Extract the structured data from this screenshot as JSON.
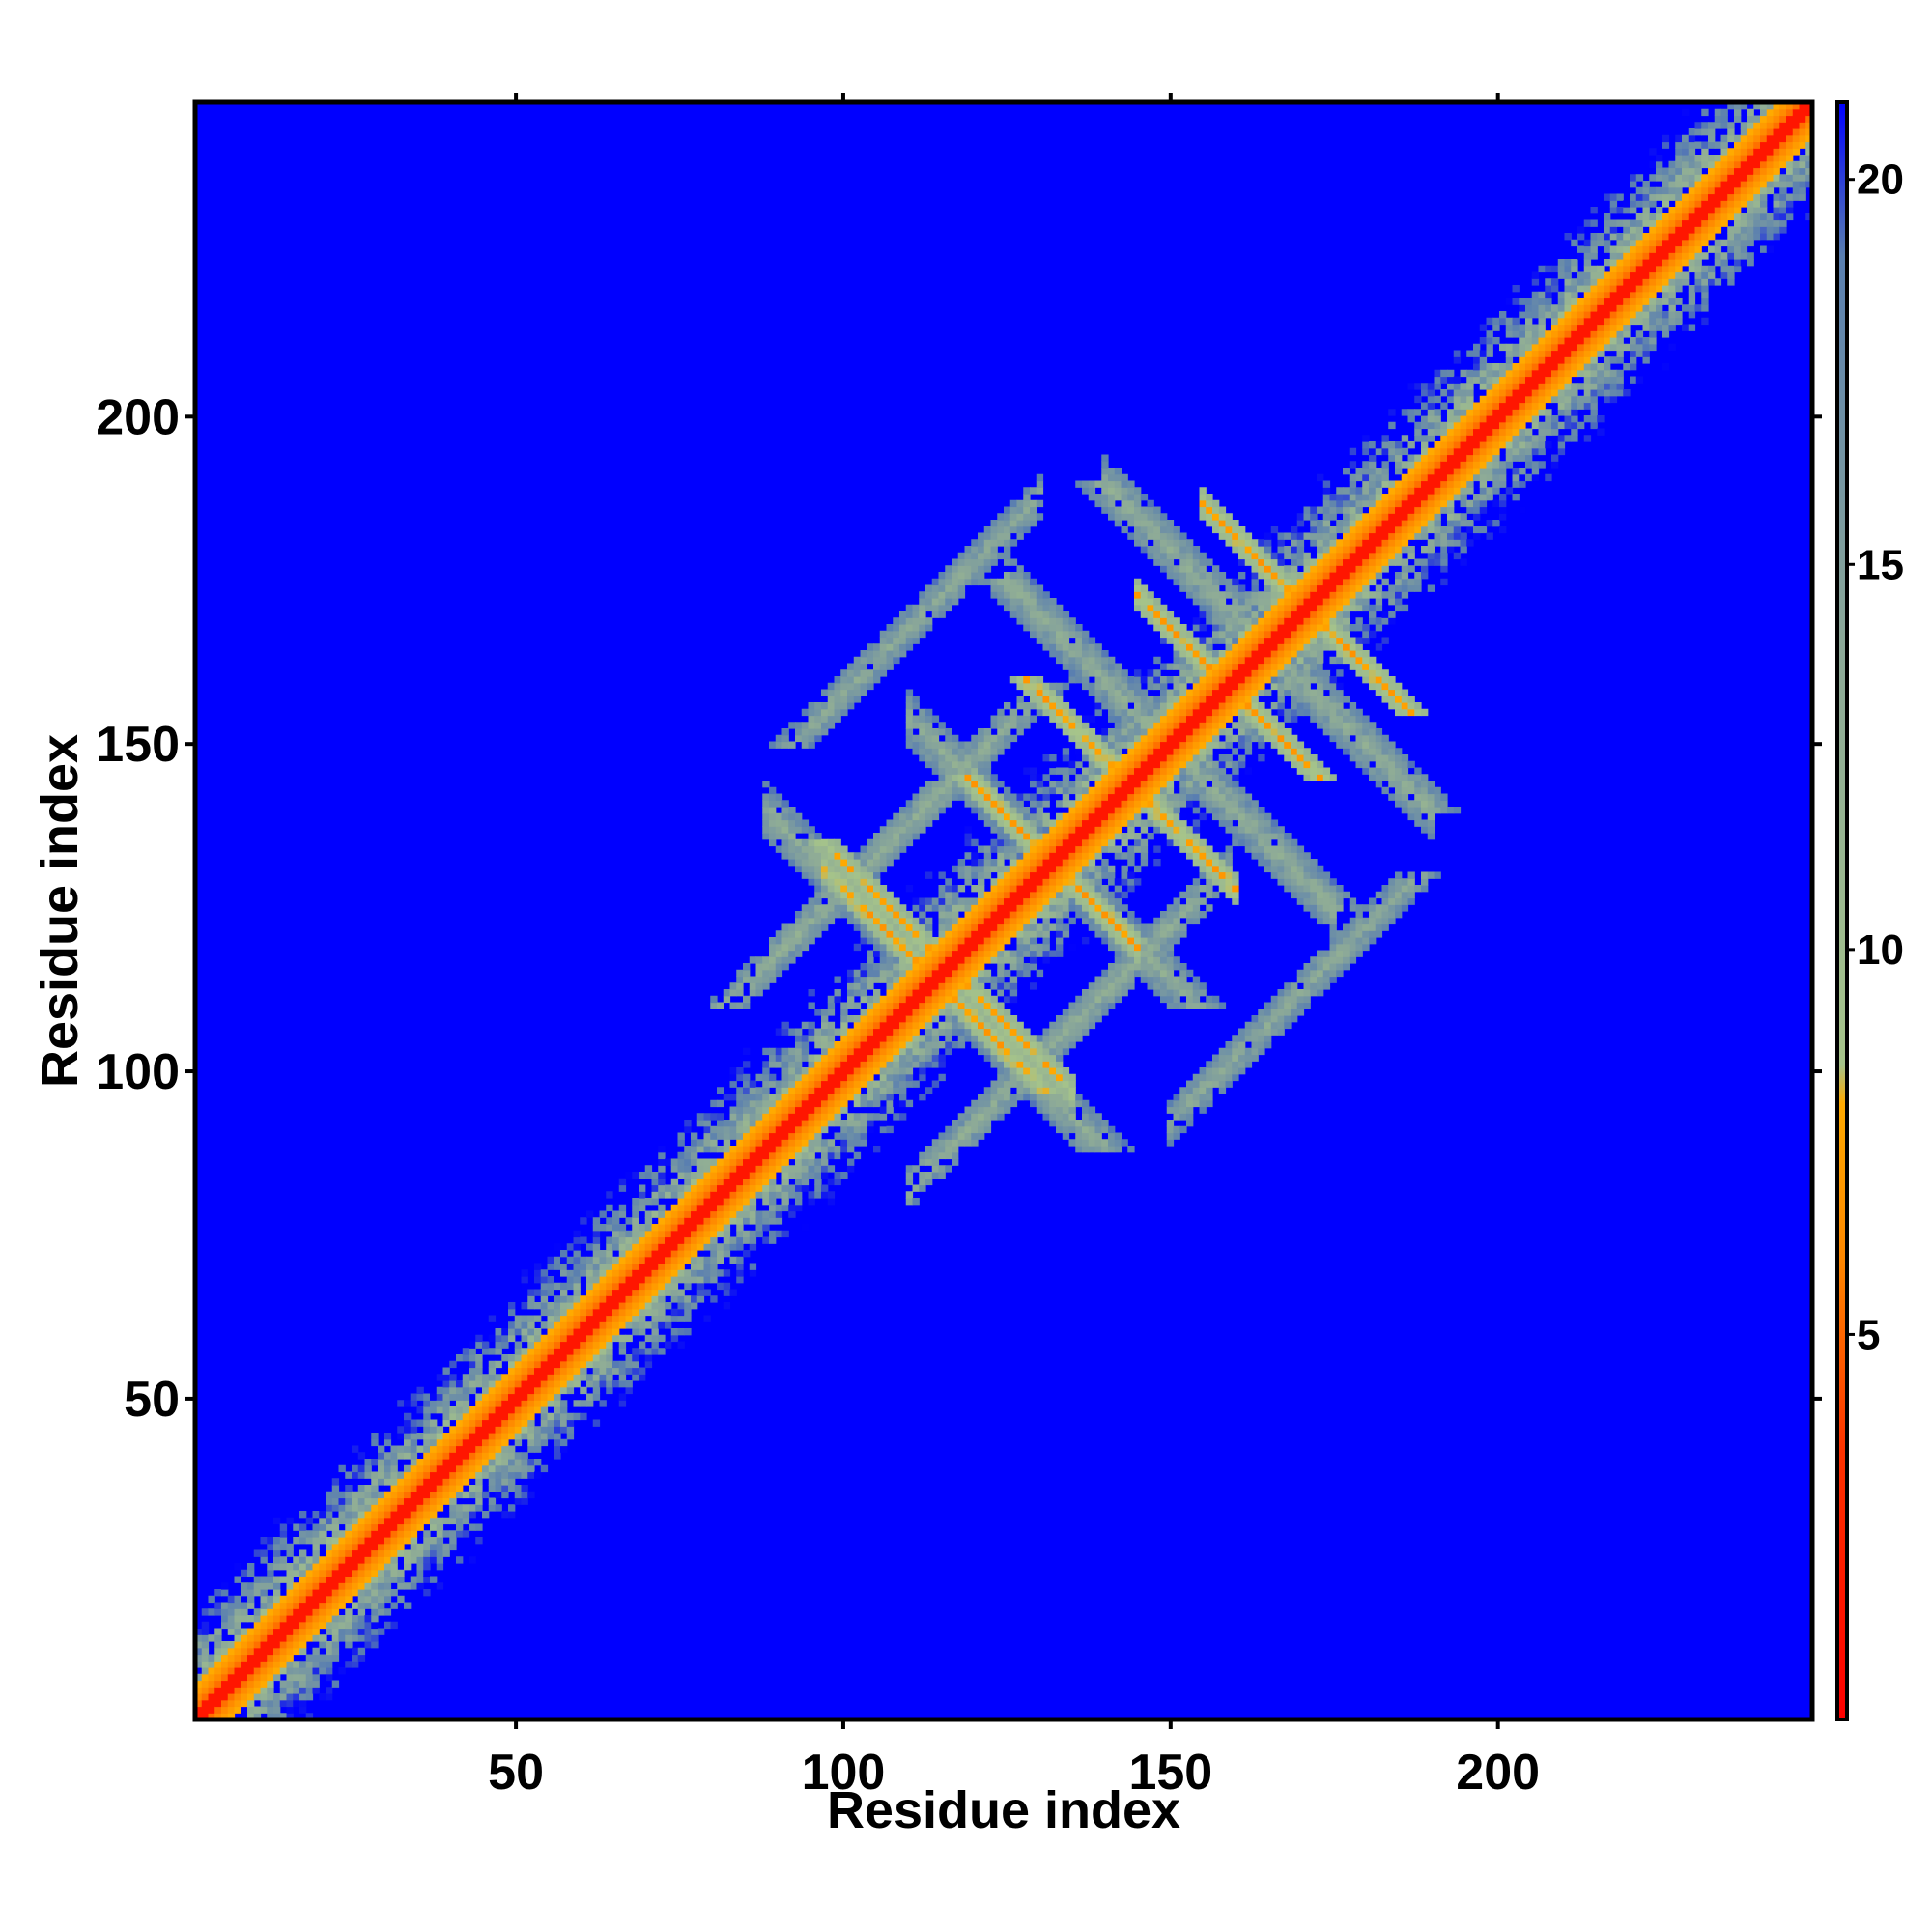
{
  "chart_data": {
    "type": "heatmap",
    "title": "",
    "xlabel": "Residue index",
    "ylabel": "Residue index",
    "xlim": [
      1,
      248
    ],
    "ylim": [
      1,
      248
    ],
    "x_ticks": [
      50,
      100,
      150,
      200
    ],
    "y_ticks": [
      50,
      100,
      150,
      200
    ],
    "x_tick_labels": [
      "50",
      "100",
      "150",
      "200"
    ],
    "y_tick_labels": [
      "50",
      "100",
      "150",
      "200"
    ],
    "grid": false,
    "legend": "right",
    "background_value": 21,
    "colorbar": {
      "position": "right",
      "range": [
        0,
        21
      ],
      "ticks": [
        5,
        10,
        15,
        20
      ],
      "tick_labels": [
        "5",
        "10",
        "15",
        "20"
      ],
      "stops": [
        {
          "value": 0,
          "color": "#ff0000"
        },
        {
          "value": 3.5,
          "color": "#ff3300"
        },
        {
          "value": 6,
          "color": "#ff8800"
        },
        {
          "value": 8,
          "color": "#ffaa00"
        },
        {
          "value": 8.5,
          "color": "#a6c48a"
        },
        {
          "value": 14,
          "color": "#8ba898"
        },
        {
          "value": 19,
          "color": "#5a7fb0"
        },
        {
          "value": 21,
          "color": "#0000ff"
        }
      ]
    },
    "bands": [
      {
        "kind": "diagonal",
        "from": 1,
        "to": 248,
        "core": 3.5,
        "inner_halfwidth": 5,
        "outer_halfwidth": 18
      },
      {
        "kind": "anti",
        "i_from": 97,
        "i_to": 125,
        "sum": 228,
        "core": 6.5
      },
      {
        "kind": "anti",
        "i_from": 100,
        "i_to": 135,
        "sum": 232,
        "core": 7
      },
      {
        "kind": "anti",
        "i_from": 120,
        "i_to": 145,
        "sum": 264,
        "core": 6.5
      },
      {
        "kind": "anti",
        "i_from": 130,
        "i_to": 160,
        "sum": 288,
        "core": 6.5
      },
      {
        "kind": "anti",
        "i_from": 145,
        "i_to": 170,
        "sum": 318,
        "core": 6.5
      },
      {
        "kind": "anti",
        "i_from": 155,
        "i_to": 185,
        "sum": 342,
        "core": 6.5
      },
      {
        "kind": "anti",
        "i_from": 88,
        "i_to": 135,
        "sum": 228,
        "core": 12,
        "halfwidth": 4
      },
      {
        "kind": "anti",
        "i_from": 110,
        "i_to": 150,
        "sum": 264,
        "core": 12,
        "halfwidth": 4
      },
      {
        "kind": "anti",
        "i_from": 125,
        "i_to": 175,
        "sum": 300,
        "core": 12,
        "halfwidth": 4
      },
      {
        "kind": "anti",
        "i_from": 140,
        "i_to": 190,
        "sum": 330,
        "core": 12,
        "halfwidth": 4
      },
      {
        "kind": "parallel",
        "offset": 28,
        "i_from": 88,
        "i_to": 125,
        "core": 12,
        "halfwidth": 3
      },
      {
        "kind": "parallel",
        "offset": -28,
        "i_from": 110,
        "i_to": 160,
        "core": 12,
        "halfwidth": 3
      },
      {
        "kind": "parallel",
        "offset": 58,
        "i_from": 95,
        "i_to": 130,
        "core": 12.5,
        "halfwidth": 3
      },
      {
        "kind": "parallel",
        "offset": -58,
        "i_from": 150,
        "i_to": 185,
        "core": 12.5,
        "halfwidth": 3
      }
    ]
  }
}
